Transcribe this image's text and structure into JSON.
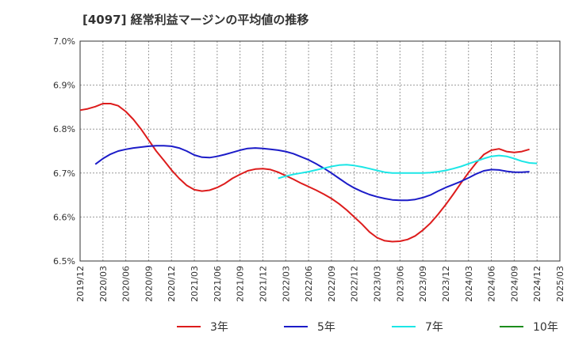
{
  "chart_data": {
    "type": "line",
    "title": "[4097]  経常利益マージンの平均値の推移",
    "xlabel": "",
    "ylabel": "",
    "ylim": [
      6.5,
      7.0
    ],
    "yticks": [
      "6.5%",
      "6.6%",
      "6.7%",
      "6.8%",
      "6.9%",
      "7.0%"
    ],
    "x_ticks": [
      "2019/12",
      "2020/03",
      "2020/06",
      "2020/09",
      "2020/12",
      "2021/03",
      "2021/06",
      "2021/09",
      "2021/12",
      "2022/03",
      "2022/06",
      "2022/09",
      "2022/12",
      "2023/03",
      "2023/06",
      "2023/09",
      "2023/12",
      "2024/03",
      "2024/06",
      "2024/09",
      "2024/12",
      "2025/03"
    ],
    "grid": true,
    "legend_position": "bottom",
    "series": [
      {
        "name": "3年",
        "color": "#dd1c1c",
        "start": "2019/12",
        "values": [
          6.843,
          6.846,
          6.851,
          6.858,
          6.858,
          6.853,
          6.84,
          6.822,
          6.8,
          6.775,
          6.75,
          6.729,
          6.707,
          6.688,
          6.672,
          6.662,
          6.659,
          6.661,
          6.667,
          6.676,
          6.688,
          6.697,
          6.705,
          6.709,
          6.71,
          6.708,
          6.702,
          6.694,
          6.686,
          6.677,
          6.669,
          6.661,
          6.652,
          6.642,
          6.63,
          6.616,
          6.6,
          6.584,
          6.566,
          6.553,
          6.546,
          6.544,
          6.545,
          6.549,
          6.557,
          6.57,
          6.586,
          6.606,
          6.628,
          6.652,
          6.677,
          6.701,
          6.723,
          6.742,
          6.752,
          6.755,
          6.749,
          6.747,
          6.749,
          6.754
        ]
      },
      {
        "name": "5年",
        "color": "#1c1cc8",
        "start": "2020/02",
        "values": [
          6.72,
          6.733,
          6.743,
          6.75,
          6.754,
          6.757,
          6.759,
          6.761,
          6.762,
          6.762,
          6.761,
          6.757,
          6.75,
          6.741,
          6.736,
          6.735,
          6.738,
          6.742,
          6.747,
          6.752,
          6.756,
          6.757,
          6.756,
          6.754,
          6.752,
          6.749,
          6.744,
          6.737,
          6.73,
          6.721,
          6.711,
          6.7,
          6.688,
          6.676,
          6.666,
          6.658,
          6.651,
          6.646,
          6.642,
          6.639,
          6.638,
          6.638,
          6.64,
          6.644,
          6.65,
          6.659,
          6.667,
          6.674,
          6.681,
          6.689,
          6.698,
          6.705,
          6.708,
          6.707,
          6.704,
          6.702,
          6.702,
          6.703
        ]
      },
      {
        "name": "7年",
        "color": "#1ce6e6",
        "start": "2022/02",
        "values": [
          6.688,
          6.693,
          6.697,
          6.7,
          6.703,
          6.707,
          6.711,
          6.715,
          6.718,
          6.719,
          6.717,
          6.714,
          6.71,
          6.706,
          6.702,
          6.7,
          6.7,
          6.7,
          6.7,
          6.7,
          6.701,
          6.703,
          6.706,
          6.71,
          6.715,
          6.721,
          6.727,
          6.733,
          6.738,
          6.74,
          6.738,
          6.733,
          6.727,
          6.723,
          6.722
        ]
      },
      {
        "name": "10年",
        "color": "#1c8c1c",
        "start": "2019/12",
        "values": []
      }
    ]
  }
}
